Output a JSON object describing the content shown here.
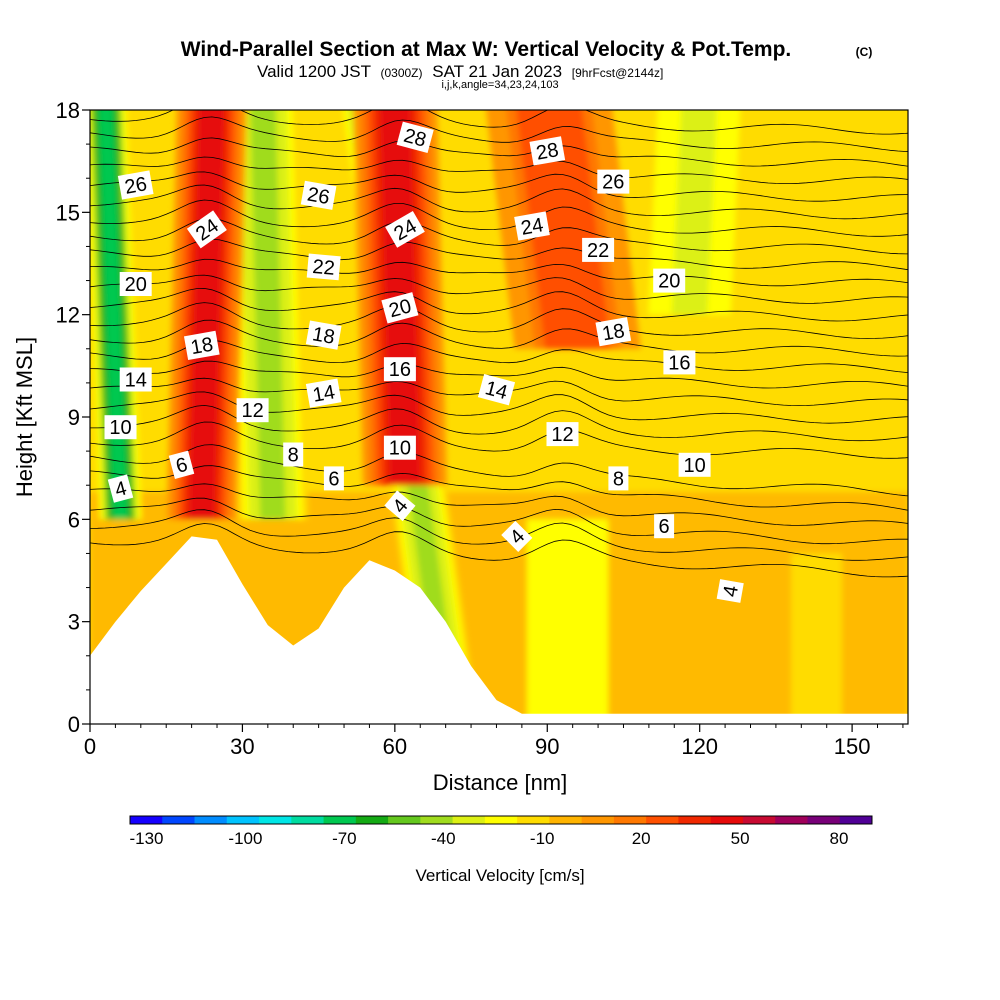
{
  "title": {
    "main": "Wind-Parallel Section at Max W: Vertical Velocity & Pot.Temp.",
    "copyright": "(C)",
    "valid_prefix": "Valid 1200 JST",
    "valid_utc": "(0300Z)",
    "valid_date": "SAT 21 Jan 2023",
    "forecast": "[9hrFcst@2144z]",
    "indices": "i,j,k,angle=34,23,24,103"
  },
  "chart_data": {
    "type": "heatmap",
    "xlabel": "Distance [nm]",
    "ylabel": "Height [Kft MSL]",
    "xlim": [
      0,
      161
    ],
    "ylim": [
      0,
      18
    ],
    "x_ticks": [
      0,
      30,
      60,
      90,
      120,
      150
    ],
    "x_tick_labels": [
      "0",
      "30",
      "60",
      "90",
      "120",
      "150"
    ],
    "y_ticks": [
      0,
      3,
      6,
      9,
      12,
      15,
      18
    ],
    "y_tick_labels": [
      "0",
      "3",
      "6",
      "9",
      "12",
      "15",
      "18"
    ],
    "colorbar": {
      "label": "Vertical Velocity [cm/s]",
      "tick_values": [
        -130,
        -100,
        -70,
        -40,
        -10,
        20,
        50,
        80
      ],
      "tick_labels": [
        "-130",
        "-100",
        "-70",
        "-40",
        "-10",
        "20",
        "50",
        "80"
      ],
      "min": -135,
      "max": 90,
      "colors": [
        "#1500ff",
        "#0046ff",
        "#008cff",
        "#00c3ff",
        "#00e6e6",
        "#00dca0",
        "#00c850",
        "#14aa14",
        "#64c81e",
        "#a0dc1e",
        "#dcf014",
        "#ffff00",
        "#ffdc00",
        "#ffb400",
        "#ff9600",
        "#ff7800",
        "#ff5000",
        "#f02800",
        "#e60a0a",
        "#c80a32",
        "#a0005a",
        "#780078",
        "#500096"
      ]
    },
    "terrain": [
      [
        0,
        2.0
      ],
      [
        5,
        3.0
      ],
      [
        10,
        3.9
      ],
      [
        15,
        4.7
      ],
      [
        20,
        5.5
      ],
      [
        25,
        5.4
      ],
      [
        30,
        4.1
      ],
      [
        35,
        2.9
      ],
      [
        40,
        2.3
      ],
      [
        45,
        2.8
      ],
      [
        50,
        4.0
      ],
      [
        55,
        4.8
      ],
      [
        60,
        4.5
      ],
      [
        65,
        4.0
      ],
      [
        70,
        3.0
      ],
      [
        75,
        1.7
      ],
      [
        80,
        0.7
      ],
      [
        85,
        0.3
      ],
      [
        90,
        0.3
      ],
      [
        161,
        0.3
      ]
    ],
    "updraft_cores": [
      {
        "x_bottom": 22,
        "x_top": 24,
        "z_bottom": 6,
        "width": 5,
        "peak_cm_s": 50
      },
      {
        "x_bottom": 62,
        "x_top": 60,
        "z_bottom": 7,
        "width": 6,
        "peak_cm_s": 50
      },
      {
        "x_bottom": 96,
        "x_top": 90,
        "z_bottom": 11,
        "width": 9,
        "peak_cm_s": 30
      }
    ],
    "downdraft_cores": [
      {
        "x_bottom": 6,
        "x_top": 3,
        "z_bottom": 6,
        "width": 3,
        "peak_cm_s": -75
      },
      {
        "x_bottom": 36,
        "x_top": 34,
        "z_bottom": 6,
        "width": 5,
        "peak_cm_s": -40
      },
      {
        "x_bottom": 70,
        "x_top": 54,
        "z_bottom": 1,
        "width": 4,
        "peak_cm_s": -40
      },
      {
        "x_bottom": 118,
        "x_top": 120,
        "z_bottom": 12,
        "width": 7,
        "peak_cm_s": -30
      }
    ],
    "theta_contours": {
      "levels": [
        4,
        5,
        6,
        7,
        8,
        9,
        10,
        11,
        12,
        13,
        14,
        15,
        16,
        17,
        18,
        19,
        20,
        21,
        22,
        23,
        24,
        25,
        26,
        27,
        28,
        29
      ],
      "labels": [
        {
          "text": "26",
          "x": 9,
          "z": 15.8,
          "angle": -10
        },
        {
          "text": "24",
          "x": 23,
          "z": 14.5,
          "angle": -35
        },
        {
          "text": "20",
          "x": 9,
          "z": 12.9,
          "angle": 0
        },
        {
          "text": "18",
          "x": 22,
          "z": 11.1,
          "angle": -10
        },
        {
          "text": "14",
          "x": 9,
          "z": 10.1,
          "angle": 0
        },
        {
          "text": "10",
          "x": 6,
          "z": 8.7,
          "angle": 0
        },
        {
          "text": "12",
          "x": 32,
          "z": 9.2,
          "angle": 0
        },
        {
          "text": "6",
          "x": 18,
          "z": 7.6,
          "angle": -15
        },
        {
          "text": "4",
          "x": 6,
          "z": 6.9,
          "angle": -15
        },
        {
          "text": "26",
          "x": 45,
          "z": 15.5,
          "angle": 10
        },
        {
          "text": "22",
          "x": 46,
          "z": 13.4,
          "angle": 5
        },
        {
          "text": "18",
          "x": 46,
          "z": 11.4,
          "angle": 10
        },
        {
          "text": "14",
          "x": 46,
          "z": 9.7,
          "angle": -10
        },
        {
          "text": "8",
          "x": 40,
          "z": 7.9,
          "angle": 0
        },
        {
          "text": "6",
          "x": 48,
          "z": 7.2,
          "angle": 0
        },
        {
          "text": "28",
          "x": 64,
          "z": 17.2,
          "angle": 15
        },
        {
          "text": "24",
          "x": 62,
          "z": 14.5,
          "angle": -30
        },
        {
          "text": "20",
          "x": 61,
          "z": 12.2,
          "angle": -15
        },
        {
          "text": "16",
          "x": 61,
          "z": 10.4,
          "angle": 0
        },
        {
          "text": "10",
          "x": 61,
          "z": 8.1,
          "angle": 0
        },
        {
          "text": "4",
          "x": 61,
          "z": 6.4,
          "angle": -50
        },
        {
          "text": "28",
          "x": 90,
          "z": 16.8,
          "angle": -10
        },
        {
          "text": "26",
          "x": 103,
          "z": 15.9,
          "angle": 0
        },
        {
          "text": "24",
          "x": 87,
          "z": 14.6,
          "angle": -10
        },
        {
          "text": "22",
          "x": 100,
          "z": 13.9,
          "angle": 0
        },
        {
          "text": "20",
          "x": 114,
          "z": 13.0,
          "angle": 0
        },
        {
          "text": "18",
          "x": 103,
          "z": 11.5,
          "angle": -10
        },
        {
          "text": "16",
          "x": 116,
          "z": 10.6,
          "angle": 0
        },
        {
          "text": "14",
          "x": 80,
          "z": 9.8,
          "angle": 15
        },
        {
          "text": "12",
          "x": 93,
          "z": 8.5,
          "angle": 0
        },
        {
          "text": "10",
          "x": 119,
          "z": 7.6,
          "angle": 0
        },
        {
          "text": "8",
          "x": 104,
          "z": 7.2,
          "angle": 0
        },
        {
          "text": "6",
          "x": 113,
          "z": 5.8,
          "angle": 0
        },
        {
          "text": "4",
          "x": 84,
          "z": 5.5,
          "angle": -45
        },
        {
          "text": "4",
          "x": 126,
          "z": 3.9,
          "angle": -80
        }
      ]
    }
  }
}
